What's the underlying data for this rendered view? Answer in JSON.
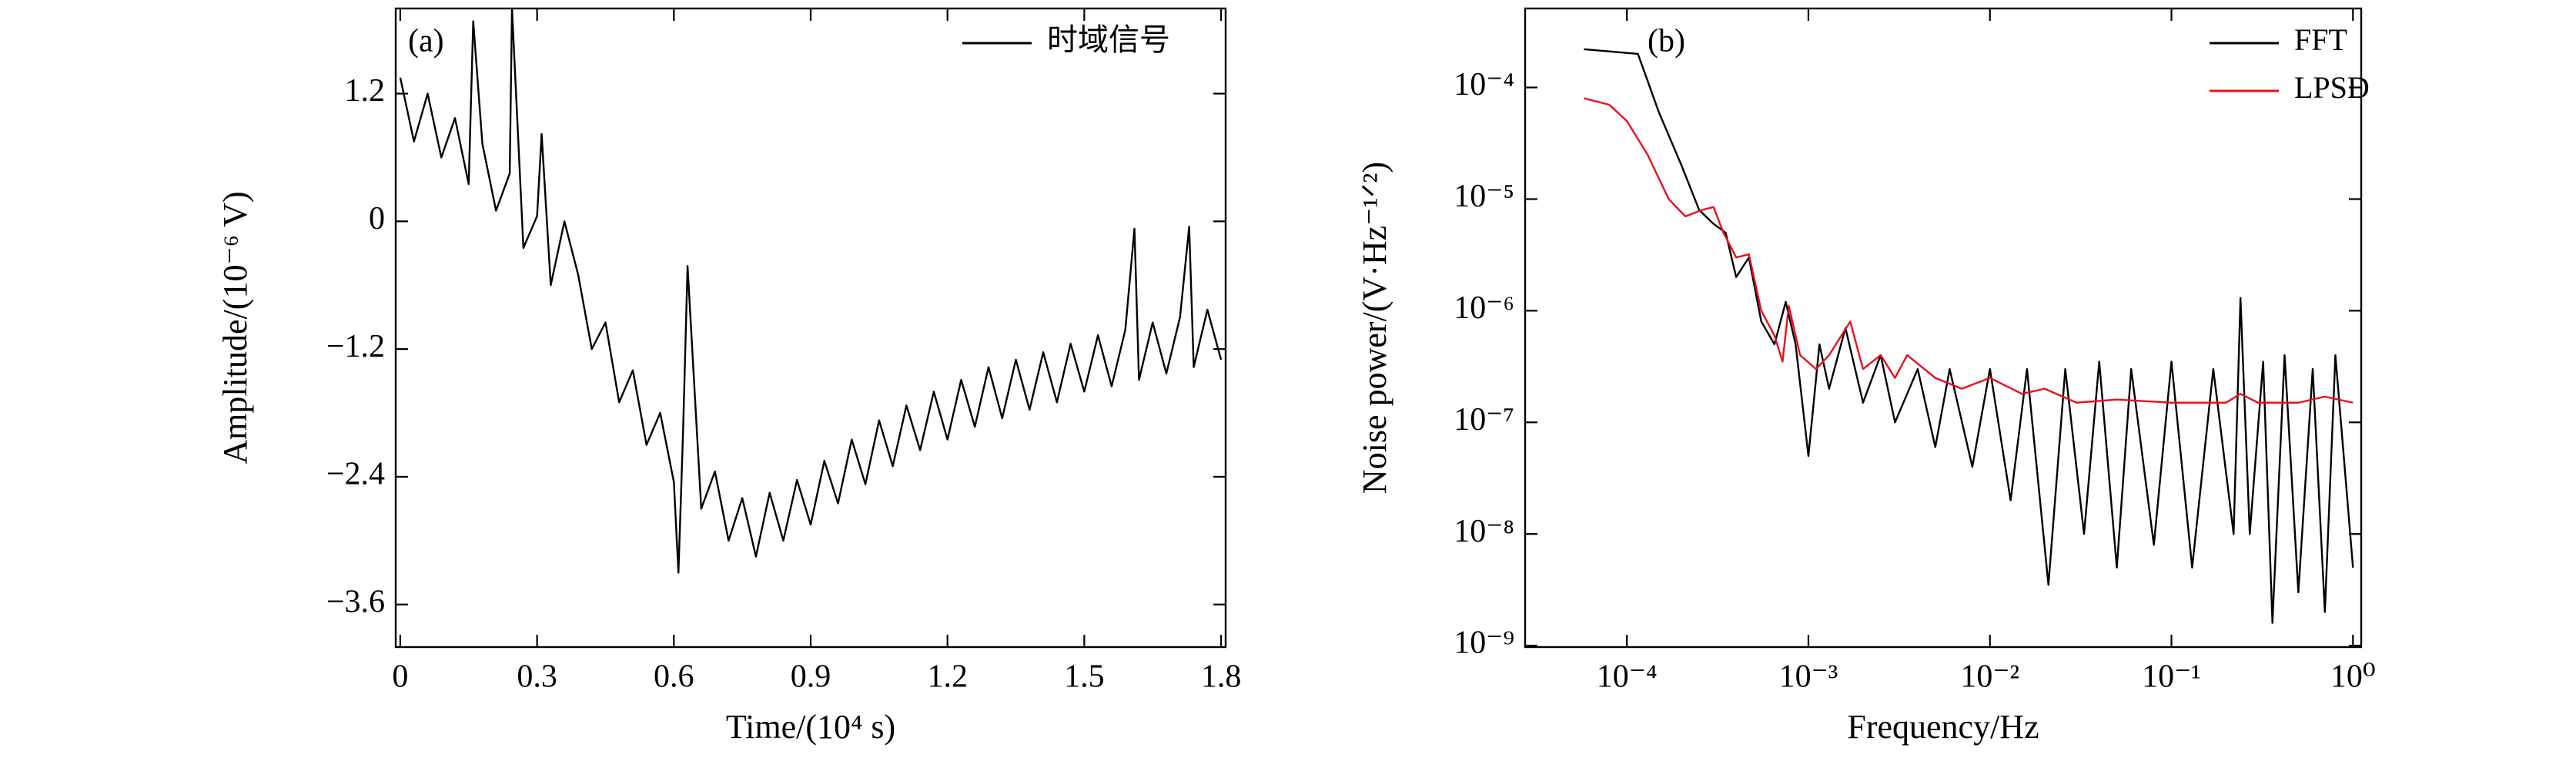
{
  "chart_data": [
    {
      "type": "line",
      "annotation": "(a)",
      "xlabel": "Time/(10⁴ s)",
      "ylabel": "Amplitude/(10⁻⁶ V)",
      "xlim": [
        -0.01,
        1.81
      ],
      "ylim": [
        -4.0,
        2.0
      ],
      "xticks": [
        0,
        0.3,
        0.6,
        0.9,
        1.2,
        1.5,
        1.8
      ],
      "yticks": [
        {
          "value": 1.2,
          "label": "1.2"
        },
        0,
        {
          "value": -1.2,
          "label": "−1.2"
        },
        {
          "value": -2.4,
          "label": "−2.4"
        },
        {
          "value": -3.6,
          "label": "−3.6"
        }
      ],
      "legend_loc": "upper right",
      "series": [
        {
          "name": "时域信号",
          "color": "#000000",
          "x": [
            0.0,
            0.03,
            0.06,
            0.09,
            0.12,
            0.15,
            0.16,
            0.18,
            0.21,
            0.24,
            0.245,
            0.27,
            0.3,
            0.31,
            0.33,
            0.36,
            0.39,
            0.42,
            0.45,
            0.48,
            0.51,
            0.54,
            0.57,
            0.6,
            0.61,
            0.62,
            0.63,
            0.66,
            0.69,
            0.72,
            0.75,
            0.78,
            0.81,
            0.84,
            0.87,
            0.9,
            0.93,
            0.96,
            0.99,
            1.02,
            1.05,
            1.08,
            1.11,
            1.14,
            1.17,
            1.2,
            1.23,
            1.26,
            1.29,
            1.32,
            1.35,
            1.38,
            1.41,
            1.44,
            1.47,
            1.5,
            1.53,
            1.56,
            1.59,
            1.61,
            1.62,
            1.65,
            1.68,
            1.71,
            1.73,
            1.74,
            1.77,
            1.8
          ],
          "values": [
            1.35,
            0.75,
            1.2,
            0.6,
            0.97,
            0.35,
            1.88,
            0.73,
            0.1,
            0.45,
            2.0,
            -0.25,
            0.05,
            0.82,
            -0.6,
            0.0,
            -0.5,
            -1.2,
            -0.95,
            -1.7,
            -1.4,
            -2.1,
            -1.8,
            -2.45,
            -3.3,
            -2.0,
            -0.42,
            -2.7,
            -2.35,
            -3.0,
            -2.6,
            -3.15,
            -2.55,
            -3.0,
            -2.43,
            -2.85,
            -2.25,
            -2.65,
            -2.05,
            -2.47,
            -1.87,
            -2.3,
            -1.73,
            -2.15,
            -1.6,
            -2.05,
            -1.49,
            -1.93,
            -1.37,
            -1.85,
            -1.3,
            -1.77,
            -1.23,
            -1.7,
            -1.15,
            -1.6,
            -1.07,
            -1.55,
            -1.02,
            -0.07,
            -1.49,
            -0.95,
            -1.43,
            -0.9,
            -0.05,
            -1.37,
            -0.83,
            -1.3
          ]
        }
      ]
    },
    {
      "type": "line",
      "annotation": "(b)",
      "xlabel": "Frequency/Hz",
      "ylabel": "Noise power/(V·Hz⁻¹ᐟ²)",
      "xscale": "log",
      "yscale": "log",
      "xlim": [
        2.75e-05,
        1.11
      ],
      "ylim": [
        9.7e-10,
        0.00051
      ],
      "xticks": [
        {
          "value": 0.0001,
          "label": "10⁻⁴"
        },
        {
          "value": 0.001,
          "label": "10⁻³"
        },
        {
          "value": 0.01,
          "label": "10⁻²"
        },
        {
          "value": 0.1,
          "label": "10⁻¹"
        },
        {
          "value": 1,
          "label": "10⁰"
        }
      ],
      "yticks": [
        {
          "value": 0.0001,
          "label": "10⁻⁴"
        },
        {
          "value": 1e-05,
          "label": "10⁻⁵"
        },
        {
          "value": 1e-06,
          "label": "10⁻⁶"
        },
        {
          "value": 1e-07,
          "label": "10⁻⁷"
        },
        {
          "value": 1e-08,
          "label": "10⁻⁸"
        },
        {
          "value": 1e-09,
          "label": "10⁻⁹"
        }
      ],
      "legend_loc": "upper right",
      "series": [
        {
          "name": "FFT",
          "color": "#000000",
          "x": [
            5.8e-05,
            0.000115,
            0.00015,
            0.0002,
            0.00025,
            0.0003,
            0.00035,
            0.0004,
            0.00047,
            0.00055,
            0.00065,
            0.00075,
            0.00085,
            0.001,
            0.00115,
            0.0013,
            0.0016,
            0.002,
            0.0025,
            0.003,
            0.004,
            0.005,
            0.006,
            0.008,
            0.01,
            0.013,
            0.016,
            0.021,
            0.026,
            0.033,
            0.04,
            0.05,
            0.06,
            0.08,
            0.1,
            0.13,
            0.17,
            0.22,
            0.24,
            0.27,
            0.32,
            0.36,
            0.42,
            0.5,
            0.6,
            0.7,
            0.8,
            1.0
          ],
          "values": [
            0.00022,
            0.0002,
            6e-05,
            2e-05,
            8e-06,
            6e-06,
            5e-06,
            2e-06,
            3e-06,
            8e-07,
            5e-07,
            1.2e-06,
            5e-07,
            5e-08,
            5e-07,
            2e-07,
            7e-07,
            1.5e-07,
            4e-07,
            1e-07,
            3e-07,
            6e-08,
            3e-07,
            4e-08,
            3e-07,
            2e-08,
            3e-07,
            3.5e-09,
            3e-07,
            1e-08,
            3.5e-07,
            5e-09,
            3e-07,
            8e-09,
            3.5e-07,
            5e-09,
            3e-07,
            1e-08,
            1.3e-06,
            1e-08,
            3.5e-07,
            1.6e-09,
            4e-07,
            3e-09,
            3e-07,
            2e-09,
            4e-07,
            5e-09
          ]
        },
        {
          "name": "LPSD",
          "color": "#e8101e",
          "x": [
            5.8e-05,
            8e-05,
            0.0001,
            0.00013,
            0.00017,
            0.00021,
            0.00026,
            0.0003,
            0.00034,
            0.0004,
            0.00047,
            0.00055,
            0.00065,
            0.00072,
            0.00078,
            0.0009,
            0.0011,
            0.0013,
            0.0017,
            0.002,
            0.0025,
            0.003,
            0.0035,
            0.005,
            0.007,
            0.01,
            0.015,
            0.02,
            0.03,
            0.05,
            0.1,
            0.2,
            0.24,
            0.3,
            0.5,
            0.7,
            1.0
          ],
          "values": [
            8e-05,
            7e-05,
            5e-05,
            2.5e-05,
            1e-05,
            7e-06,
            8e-06,
            8.5e-06,
            5e-06,
            3e-06,
            3.2e-06,
            1e-06,
            6e-07,
            3.5e-07,
            1.1e-06,
            4e-07,
            3e-07,
            4e-07,
            8e-07,
            3e-07,
            4e-07,
            2.5e-07,
            4e-07,
            2.5e-07,
            2e-07,
            2.5e-07,
            1.8e-07,
            2e-07,
            1.5e-07,
            1.6e-07,
            1.5e-07,
            1.5e-07,
            1.8e-07,
            1.5e-07,
            1.5e-07,
            1.7e-07,
            1.5e-07
          ]
        }
      ]
    }
  ]
}
